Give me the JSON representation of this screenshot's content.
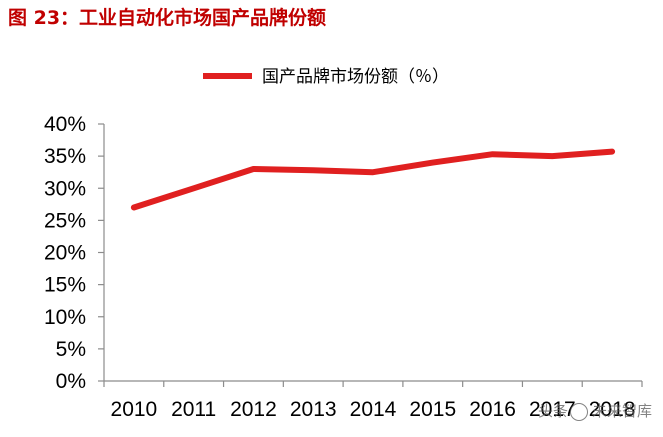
{
  "figure_title": "图 23：工业自动化市场国产品牌份额",
  "watermark": {
    "left": "头条",
    "right": "未来智库"
  },
  "colors": {
    "series": "#e02020",
    "title": "#c00000"
  },
  "chart_data": {
    "type": "line",
    "title": "",
    "xlabel": "",
    "ylabel": "",
    "x": [
      "2010",
      "2011",
      "2012",
      "2013",
      "2014",
      "2015",
      "2016",
      "2017",
      "2018"
    ],
    "series": [
      {
        "name": "国产品牌市场份额（％）",
        "values": [
          27.0,
          30.0,
          33.0,
          32.8,
          32.5,
          34.0,
          35.3,
          35.0,
          35.7
        ]
      }
    ],
    "ylim": [
      0,
      40
    ],
    "y_ticks": [
      "0%",
      "5%",
      "10%",
      "15%",
      "20%",
      "25%",
      "30%",
      "35%",
      "40%"
    ],
    "grid": false,
    "legend": "top-center"
  }
}
